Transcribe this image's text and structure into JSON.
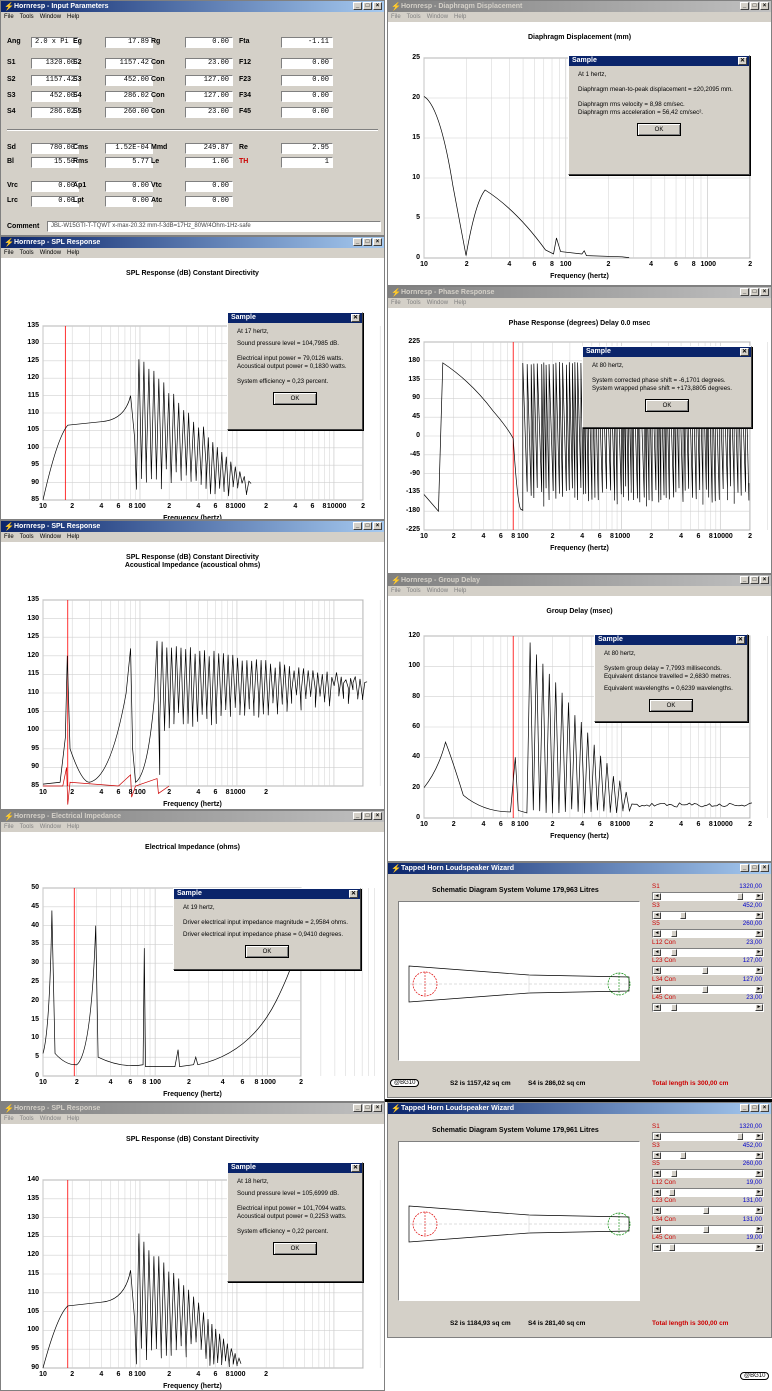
{
  "params": {
    "title": "Hornresp - Input Parameters",
    "menu": [
      "File",
      "Tools",
      "Window",
      "Help"
    ],
    "rows1": [
      [
        {
          "l": "Ang",
          "v": "2.0 x Pi",
          "left": true
        },
        {
          "l": "Eg",
          "v": "17.89"
        },
        {
          "l": "Rg",
          "v": "0.00"
        },
        {
          "l": "Fta",
          "v": "-1.11"
        }
      ],
      [
        {
          "l": "S1",
          "v": "1320.00"
        },
        {
          "l": "S2",
          "v": "1157.42"
        },
        {
          "l": "Con",
          "v": "23.00"
        },
        {
          "l": "F12",
          "v": "0.00"
        }
      ],
      [
        {
          "l": "S2",
          "v": "1157.42"
        },
        {
          "l": "S3",
          "v": "452.00"
        },
        {
          "l": "Con",
          "v": "127.00"
        },
        {
          "l": "F23",
          "v": "0.00"
        }
      ],
      [
        {
          "l": "S3",
          "v": "452.00"
        },
        {
          "l": "S4",
          "v": "286.02"
        },
        {
          "l": "Con",
          "v": "127.00"
        },
        {
          "l": "F34",
          "v": "0.00"
        }
      ],
      [
        {
          "l": "S4",
          "v": "286.02"
        },
        {
          "l": "S5",
          "v": "260.00"
        },
        {
          "l": "Con",
          "v": "23.00"
        },
        {
          "l": "F45",
          "v": "0.00"
        }
      ]
    ],
    "rows2": [
      [
        {
          "l": "Sd",
          "v": "780.00"
        },
        {
          "l": "Cms",
          "v": "1.52E-04"
        },
        {
          "l": "Mmd",
          "v": "249.87"
        },
        {
          "l": "Re",
          "v": "2.95"
        }
      ],
      [
        {
          "l": "Bl",
          "v": "15.50"
        },
        {
          "l": "Rms",
          "v": "5.77"
        },
        {
          "l": "Le",
          "v": "1.06"
        },
        {
          "l": "TH",
          "v": "1",
          "red": true
        }
      ]
    ],
    "rows3": [
      [
        {
          "l": "Vrc",
          "v": "0.00"
        },
        {
          "l": "Ap1",
          "v": "0.00"
        },
        {
          "l": "Vtc",
          "v": "0.00"
        }
      ],
      [
        {
          "l": "Lrc",
          "v": "0.00"
        },
        {
          "l": "Lpt",
          "v": "0.00"
        },
        {
          "l": "Atc",
          "v": "0.00"
        }
      ]
    ],
    "comment_label": "Comment",
    "comment": "JBL-W15GTI-T-TQWT x-max-20.32 mm-f-3dB=17Hz_80W/4Ohm-1Hz-safe"
  },
  "windows": {
    "spl1": {
      "title": "Hornresp - SPL Response",
      "active": true
    },
    "spl2": {
      "title": "Hornresp - SPL Response",
      "active": true
    },
    "imp": {
      "title": "Hornresp - Electrical Impedance",
      "active": false
    },
    "spl3": {
      "title": "Hornresp - SPL Response",
      "active": false
    },
    "disp": {
      "title": "Hornresp - Diaphragm Displacement",
      "active": false
    },
    "phase": {
      "title": "Hornresp - Phase Response",
      "active": false
    },
    "gd": {
      "title": "Hornresp - Group Delay",
      "active": false
    },
    "wiz1": {
      "title": "Tapped Horn Loudspeaker Wizard"
    },
    "wiz2": {
      "title": "Tapped Horn Loudspeaker Wizard"
    }
  },
  "menu": [
    "File",
    "Tools",
    "Window",
    "Help"
  ],
  "xticks_full": [
    "10",
    "2",
    "4",
    "6",
    "8",
    "100",
    "2",
    "4",
    "6",
    "8",
    "1000",
    "2",
    "4",
    "6",
    "8",
    "10000",
    "2"
  ],
  "xticks_short": [
    "10",
    "2",
    "4",
    "6",
    "8",
    "100",
    "2",
    "4",
    "6",
    "8",
    "1000",
    "2"
  ],
  "charts": {
    "spl1": {
      "title": "SPL Response (dB)   Constant Directivity",
      "xlabel": "Frequency (hertz)",
      "yticks": [
        "135",
        "130",
        "125",
        "120",
        "115",
        "110",
        "105",
        "100",
        "95",
        "90",
        "85"
      ]
    },
    "spl2": {
      "title": "SPL Response (dB)   Constant Directivity",
      "subtitle": "Acoustical Impedance (acoustical ohms)",
      "xlabel": "Frequency (hertz)",
      "yticks": [
        "135",
        "130",
        "125",
        "120",
        "115",
        "110",
        "105",
        "100",
        "95",
        "90",
        "85"
      ]
    },
    "imp": {
      "title": "Electrical Impedance (ohms)",
      "xlabel": "Frequency (hertz)",
      "yticks": [
        "50",
        "45",
        "40",
        "35",
        "30",
        "25",
        "20",
        "15",
        "10",
        "5",
        "0"
      ]
    },
    "spl3": {
      "title": "SPL Response (dB)   Constant Directivity",
      "xlabel": "Frequency (hertz)",
      "yticks": [
        "140",
        "135",
        "130",
        "125",
        "120",
        "115",
        "110",
        "105",
        "100",
        "95",
        "90"
      ]
    },
    "disp": {
      "title": "Diaphragm Displacement (mm)",
      "xlabel": "Frequency (hertz)",
      "yticks": [
        "25",
        "20",
        "15",
        "10",
        "5",
        "0"
      ]
    },
    "phase": {
      "title": "Phase Response (degrees)   Delay 0.0 msec",
      "xlabel": "Frequency (hertz)",
      "yticks": [
        "225",
        "180",
        "135",
        "90",
        "45",
        "0",
        "-45",
        "-90",
        "-135",
        "-180",
        "-225"
      ]
    },
    "gd": {
      "title": "Group Delay (msec)",
      "xlabel": "Frequency (hertz)",
      "yticks": [
        "120",
        "100",
        "80",
        "60",
        "40",
        "20",
        "0"
      ]
    }
  },
  "chart_data": [
    {
      "type": "line",
      "name": "spl1",
      "title": "SPL Response (dB)   Constant Directivity",
      "xlabel": "Frequency (hertz)",
      "xscale": "log",
      "xlim": [
        10,
        20000
      ],
      "ylim": [
        85,
        135
      ],
      "x": [
        10,
        12,
        14,
        16,
        20,
        30,
        50,
        70,
        80,
        90,
        100,
        120,
        150,
        200,
        300,
        500,
        1000
      ],
      "values": [
        85,
        95,
        104,
        106,
        107.5,
        107.5,
        108,
        110,
        115,
        105,
        118,
        125,
        110,
        118,
        110,
        98,
        95
      ]
    },
    {
      "type": "line",
      "name": "spl2",
      "title": "SPL Response (dB)   Constant Directivity",
      "subtitle": "Acoustical Impedance (acoustical ohms)",
      "xlabel": "Frequency (hertz)",
      "xscale": "log",
      "xlim": [
        10,
        20000
      ],
      "ylim": [
        85,
        135
      ],
      "x": [
        10,
        15,
        17,
        18,
        20,
        30,
        50,
        80,
        100,
        150,
        200,
        500,
        1000,
        5000,
        20000
      ],
      "values": [
        85,
        86,
        110,
        120,
        100,
        92,
        88,
        123,
        100,
        124,
        110,
        115,
        113,
        110,
        110
      ]
    },
    {
      "type": "line",
      "name": "imp",
      "title": "Electrical Impedance (ohms)",
      "xlabel": "Frequency (hertz)",
      "xscale": "log",
      "xlim": [
        10,
        2000
      ],
      "ylim": [
        0,
        50
      ],
      "x": [
        10,
        12,
        13,
        15,
        19,
        25,
        30,
        35,
        50,
        80,
        82,
        100,
        200,
        500,
        1000,
        2000
      ],
      "values": [
        5,
        44,
        5,
        3,
        3,
        4,
        40,
        4,
        3,
        2,
        33,
        3,
        8,
        4,
        15,
        42
      ]
    },
    {
      "type": "line",
      "name": "spl3",
      "title": "SPL Response (dB)   Constant Directivity",
      "xlabel": "Frequency (hertz)",
      "xscale": "log",
      "xlim": [
        10,
        2000
      ],
      "ylim": [
        90,
        140
      ],
      "x": [
        10,
        14,
        18,
        30,
        70,
        80,
        90,
        150,
        200,
        300,
        500,
        700,
        900
      ],
      "values": [
        90,
        103,
        106,
        107,
        111,
        116,
        98,
        124,
        104,
        123,
        112,
        100,
        91
      ]
    },
    {
      "type": "line",
      "name": "disp",
      "title": "Diaphragm Displacement (mm)",
      "xlabel": "Frequency (hertz)",
      "xscale": "log",
      "xlim": [
        10,
        2000
      ],
      "ylim": [
        0,
        25
      ],
      "x": [
        10,
        12,
        15,
        18,
        20,
        25,
        30,
        50,
        70,
        80,
        90,
        100,
        200
      ],
      "values": [
        20,
        19,
        12,
        4,
        0.5,
        7,
        8.5,
        4,
        1.5,
        0.5,
        2.5,
        0.5,
        0
      ]
    },
    {
      "type": "line",
      "name": "phase",
      "title": "Phase Response (degrees)   Delay 0.0 msec",
      "xlabel": "Frequency (hertz)",
      "xscale": "log",
      "xlim": [
        10,
        20000
      ],
      "ylim": [
        -225,
        225
      ],
      "x": [
        10,
        15,
        20,
        30,
        50,
        80,
        100,
        150,
        200,
        500,
        1000,
        10000,
        20000
      ],
      "values": [
        -140,
        -180,
        175,
        100,
        40,
        -6,
        -170,
        175,
        -180,
        100,
        -160,
        90,
        -120
      ]
    },
    {
      "type": "line",
      "name": "gd",
      "title": "Group Delay (msec)",
      "xlabel": "Frequency (hertz)",
      "xscale": "log",
      "xlim": [
        10,
        20000
      ],
      "ylim": [
        0,
        120
      ],
      "x": [
        10,
        15,
        17,
        20,
        30,
        60,
        80,
        90,
        150,
        200,
        300,
        500,
        1000,
        20000
      ],
      "values": [
        20,
        40,
        50,
        40,
        10,
        3,
        7.8,
        38,
        110,
        88,
        60,
        30,
        12,
        8
      ]
    }
  ],
  "dialogs": {
    "spl1": {
      "title": "Sample",
      "close": "✕",
      "lines": [
        "At 17 hertz,",
        "Sound pressure level = 104,7985 dB.",
        "Electrical input power = 79,0126 watts.",
        "Acoustical output power = 0,1830 watts.",
        "System efficiency = 0,23 percent."
      ],
      "ok": "OK"
    },
    "imp": {
      "title": "Sample",
      "close": "✕",
      "lines": [
        "At 19 hertz,",
        "Driver electrical input impedance magnitude = 2,9584 ohms.",
        "Driver electrical input impedance phase = 0,9410 degrees."
      ],
      "ok": "OK"
    },
    "spl3": {
      "title": "Sample",
      "close": "✕",
      "lines": [
        "At 18 hertz,",
        "Sound pressure level = 105,6999 dB.",
        "Electrical input power = 101,7094 watts.",
        "Acoustical output power = 0,2253 watts.",
        "System efficiency = 0,22 percent."
      ],
      "ok": "OK"
    },
    "disp": {
      "title": "Sample",
      "close": "✕",
      "lines": [
        "At 1 hertz,",
        "Diaphragm mean-to-peak displacement = ±20,2095 mm.",
        "Diaphragm rms velocity = 8,98 cm/sec.",
        "Diaphragm rms acceleration = 56,42 cm/sec²."
      ],
      "ok": "OK"
    },
    "phase": {
      "title": "Sample",
      "close": "✕",
      "lines": [
        "At 80 hertz,",
        "System corrected phase shift = -6,1701 degrees.",
        "System wrapped phase shift = +173,8805 degrees."
      ],
      "ok": "OK"
    },
    "gd": {
      "title": "Sample",
      "close": "✕",
      "lines": [
        "At 80 hertz,",
        "System group delay = 7,7993 milliseconds.",
        "Equivalent distance travelled = 2,6830 metres.",
        "Equivalent wavelengths = 0,6239 wavelengths."
      ],
      "ok": "OK"
    }
  },
  "wiz1": {
    "title": "Schematic Diagram   System Volume 179,963 Litres",
    "sliders": [
      {
        "l": "S1",
        "v": "1320,00",
        "t": 0.85
      },
      {
        "l": "S3",
        "v": "452,00",
        "t": 0.2
      },
      {
        "l": "S5",
        "v": "260,00",
        "t": 0.1
      },
      {
        "l": "L12 Con",
        "v": "23,00",
        "t": 0.1
      },
      {
        "l": "L23 Con",
        "v": "127,00",
        "t": 0.45
      },
      {
        "l": "L34 Con",
        "v": "127,00",
        "t": 0.45
      },
      {
        "l": "L45 Con",
        "v": "23,00",
        "t": 0.1
      }
    ],
    "s2": "S2 is 1157,42 sq cm",
    "s4": "S4 is 286,02 sq cm",
    "total": "Total length is 300,00 cm",
    "badge": "@BG10"
  },
  "wiz2": {
    "title": "Schematic Diagram   System Volume 179,961 Litres",
    "sliders": [
      {
        "l": "S1",
        "v": "1320,00",
        "t": 0.85
      },
      {
        "l": "S3",
        "v": "452,00",
        "t": 0.2
      },
      {
        "l": "S5",
        "v": "260,00",
        "t": 0.1
      },
      {
        "l": "L12 Con",
        "v": "19,00",
        "t": 0.08
      },
      {
        "l": "L23 Con",
        "v": "131,00",
        "t": 0.47
      },
      {
        "l": "L34 Con",
        "v": "131,00",
        "t": 0.47
      },
      {
        "l": "L45 Con",
        "v": "19,00",
        "t": 0.08
      }
    ],
    "s2": "S2 is 1184,93 sq cm",
    "s4": "S4 is 281,40 sq cm",
    "total": "Total length is 300,00 cm",
    "badge": "@BG10"
  },
  "colors": {
    "trace": "#000000",
    "marker": "#ff0000",
    "grid": "#d0d0d0",
    "blue": "#0000cc"
  }
}
